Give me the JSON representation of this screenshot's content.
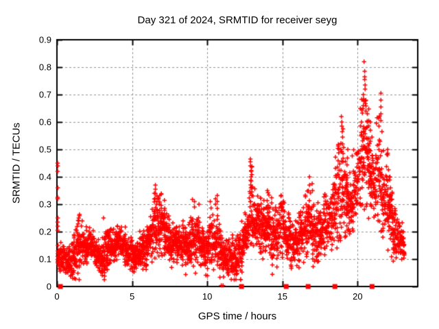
{
  "window": {
    "background": "#ffffff",
    "text_color": "#000000"
  },
  "chart_data": {
    "type": "scatter",
    "title": "Day 321 of 2024, SRMTID for receiver seyg",
    "xlabel": "GPS time / hours",
    "ylabel": "SRMTID / TECUs",
    "xlim": [
      0,
      24
    ],
    "ylim": [
      0,
      0.9
    ],
    "x_ticks": [
      0,
      5,
      10,
      15,
      20
    ],
    "y_ticks": [
      0,
      0.1,
      0.2,
      0.3,
      0.4,
      0.5,
      0.6,
      0.7,
      0.8,
      0.9
    ],
    "grid": true,
    "legend": "none",
    "marker": "plus",
    "marker_color": "#ff0000",
    "grid_color": "#909090",
    "axis_color": "#000000",
    "series_name": "SRMTID",
    "sample_step_hours": 0.009,
    "data_start_hour": 0.05,
    "data_end_hour": 23.1,
    "seed": 1321,
    "envelope_t_center_halfspread": [
      [
        0.15,
        0.11,
        0.05
      ],
      [
        0.5,
        0.105,
        0.045
      ],
      [
        0.9,
        0.085,
        0.045
      ],
      [
        1.2,
        0.1,
        0.06
      ],
      [
        1.45,
        0.16,
        0.08
      ],
      [
        1.8,
        0.15,
        0.05
      ],
      [
        2.2,
        0.145,
        0.045
      ],
      [
        2.6,
        0.13,
        0.05
      ],
      [
        2.95,
        0.09,
        0.055
      ],
      [
        3.15,
        0.11,
        0.08
      ],
      [
        3.5,
        0.13,
        0.05
      ],
      [
        3.9,
        0.16,
        0.05
      ],
      [
        4.3,
        0.16,
        0.05
      ],
      [
        4.7,
        0.13,
        0.05
      ],
      [
        5.0,
        0.12,
        0.06
      ],
      [
        5.3,
        0.11,
        0.05
      ],
      [
        5.7,
        0.13,
        0.05
      ],
      [
        6.0,
        0.15,
        0.06
      ],
      [
        6.3,
        0.18,
        0.08
      ],
      [
        6.6,
        0.24,
        0.11
      ],
      [
        6.9,
        0.22,
        0.09
      ],
      [
        7.2,
        0.2,
        0.07
      ],
      [
        7.5,
        0.17,
        0.06
      ],
      [
        7.8,
        0.17,
        0.06
      ],
      [
        8.1,
        0.16,
        0.06
      ],
      [
        8.4,
        0.15,
        0.065
      ],
      [
        8.7,
        0.16,
        0.07
      ],
      [
        9.0,
        0.18,
        0.09
      ],
      [
        9.3,
        0.19,
        0.08
      ],
      [
        9.6,
        0.15,
        0.06
      ],
      [
        9.9,
        0.13,
        0.06
      ],
      [
        10.2,
        0.18,
        0.09
      ],
      [
        10.5,
        0.18,
        0.09
      ],
      [
        10.8,
        0.15,
        0.08
      ],
      [
        11.1,
        0.12,
        0.06
      ],
      [
        11.5,
        0.1,
        0.05
      ],
      [
        11.8,
        0.09,
        0.055
      ],
      [
        12.1,
        0.12,
        0.06
      ],
      [
        12.4,
        0.15,
        0.07
      ],
      [
        12.7,
        0.19,
        0.08
      ],
      [
        12.9,
        0.3,
        0.14
      ],
      [
        13.1,
        0.23,
        0.1
      ],
      [
        13.4,
        0.23,
        0.09
      ],
      [
        13.7,
        0.2,
        0.08
      ],
      [
        14.0,
        0.23,
        0.09
      ],
      [
        14.3,
        0.21,
        0.08
      ],
      [
        14.6,
        0.2,
        0.08
      ],
      [
        14.9,
        0.22,
        0.09
      ],
      [
        15.2,
        0.19,
        0.07
      ],
      [
        15.5,
        0.16,
        0.07
      ],
      [
        15.8,
        0.15,
        0.07
      ],
      [
        16.1,
        0.17,
        0.08
      ],
      [
        16.4,
        0.19,
        0.09
      ],
      [
        16.7,
        0.23,
        0.11
      ],
      [
        17.0,
        0.22,
        0.1
      ],
      [
        17.3,
        0.19,
        0.08
      ],
      [
        17.6,
        0.2,
        0.09
      ],
      [
        17.9,
        0.23,
        0.1
      ],
      [
        18.2,
        0.25,
        0.1
      ],
      [
        18.5,
        0.28,
        0.12
      ],
      [
        18.8,
        0.34,
        0.16
      ],
      [
        19.1,
        0.34,
        0.14
      ],
      [
        19.4,
        0.3,
        0.11
      ],
      [
        19.7,
        0.33,
        0.11
      ],
      [
        20.0,
        0.38,
        0.13
      ],
      [
        20.25,
        0.52,
        0.18
      ],
      [
        20.5,
        0.52,
        0.18
      ],
      [
        20.75,
        0.44,
        0.14
      ],
      [
        21.0,
        0.4,
        0.13
      ],
      [
        21.2,
        0.38,
        0.13
      ],
      [
        21.45,
        0.44,
        0.17
      ],
      [
        21.7,
        0.34,
        0.12
      ],
      [
        22.0,
        0.31,
        0.13
      ],
      [
        22.3,
        0.23,
        0.1
      ],
      [
        22.6,
        0.175,
        0.07
      ],
      [
        22.9,
        0.165,
        0.05
      ],
      [
        23.1,
        0.155,
        0.04
      ]
    ],
    "spike_points": [
      {
        "t": 1.45,
        "values": [
          0.25,
          0.24
        ]
      },
      {
        "t": 3.1,
        "values": [
          0.25
        ]
      },
      {
        "t": 6.55,
        "values": [
          0.37,
          0.355,
          0.34
        ]
      },
      {
        "t": 6.65,
        "values": [
          0.33,
          0.31
        ]
      },
      {
        "t": 6.8,
        "values": [
          0.3
        ]
      },
      {
        "t": 9.15,
        "values": [
          0.31,
          0.29
        ]
      },
      {
        "t": 9.45,
        "values": [
          0.3
        ]
      },
      {
        "t": 10.2,
        "values": [
          0.31
        ]
      },
      {
        "t": 10.55,
        "values": [
          0.32,
          0.3
        ]
      },
      {
        "t": 12.87,
        "values": [
          0.465,
          0.455,
          0.44
        ]
      },
      {
        "t": 12.92,
        "values": [
          0.42,
          0.4,
          0.385
        ]
      },
      {
        "t": 12.97,
        "values": [
          0.36,
          0.345
        ]
      },
      {
        "t": 13.35,
        "values": [
          0.33
        ]
      },
      {
        "t": 14.0,
        "values": [
          0.35
        ]
      },
      {
        "t": 14.9,
        "values": [
          0.33
        ]
      },
      {
        "t": 16.8,
        "values": [
          0.4,
          0.37
        ]
      },
      {
        "t": 17.0,
        "values": [
          0.35
        ]
      },
      {
        "t": 17.9,
        "values": [
          0.33
        ]
      },
      {
        "t": 18.88,
        "values": [
          0.5
        ]
      },
      {
        "t": 18.92,
        "values": [
          0.62
        ]
      },
      {
        "t": 18.95,
        "values": [
          0.6,
          0.585
        ]
      },
      {
        "t": 18.98,
        "values": [
          0.565
        ]
      },
      {
        "t": 19.0,
        "values": [
          0.545,
          0.52
        ]
      },
      {
        "t": 19.35,
        "values": [
          0.5
        ]
      },
      {
        "t": 20.38,
        "values": [
          0.7,
          0.66
        ]
      },
      {
        "t": 20.43,
        "values": [
          0.82
        ]
      },
      {
        "t": 20.47,
        "values": [
          0.785,
          0.765,
          0.755
        ]
      },
      {
        "t": 20.5,
        "values": [
          0.735,
          0.72
        ]
      },
      {
        "t": 20.55,
        "values": [
          0.68,
          0.64
        ]
      },
      {
        "t": 20.65,
        "values": [
          0.63,
          0.6
        ]
      },
      {
        "t": 20.85,
        "values": [
          0.6,
          0.57,
          0.53
        ]
      },
      {
        "t": 21.55,
        "values": [
          0.705,
          0.68,
          0.655,
          0.63,
          0.605
        ]
      },
      {
        "t": 21.62,
        "values": [
          0.565
        ]
      },
      {
        "t": 22.0,
        "values": [
          0.5,
          0.48
        ]
      }
    ],
    "isolated_points": [
      [
        0.05,
        0.45
      ],
      [
        0.06,
        0.44
      ],
      [
        0.05,
        0.42
      ],
      [
        0.06,
        0.36
      ],
      [
        0.05,
        0.325
      ],
      [
        0.05,
        0.32
      ],
      [
        0.06,
        0.25
      ],
      [
        0.05,
        0.235
      ],
      [
        0.06,
        0.22
      ],
      [
        0.05,
        0.205
      ],
      [
        0.07,
        0.15
      ],
      [
        0.08,
        0.13
      ],
      [
        0.06,
        0.12
      ],
      [
        0.09,
        0.1
      ]
    ],
    "zero_square_markers_t": [
      0.23,
      12.28,
      15.25,
      16.71,
      18.49,
      20.96
    ],
    "zero_plus_markers_t": [
      10.93,
      11.05
    ]
  }
}
